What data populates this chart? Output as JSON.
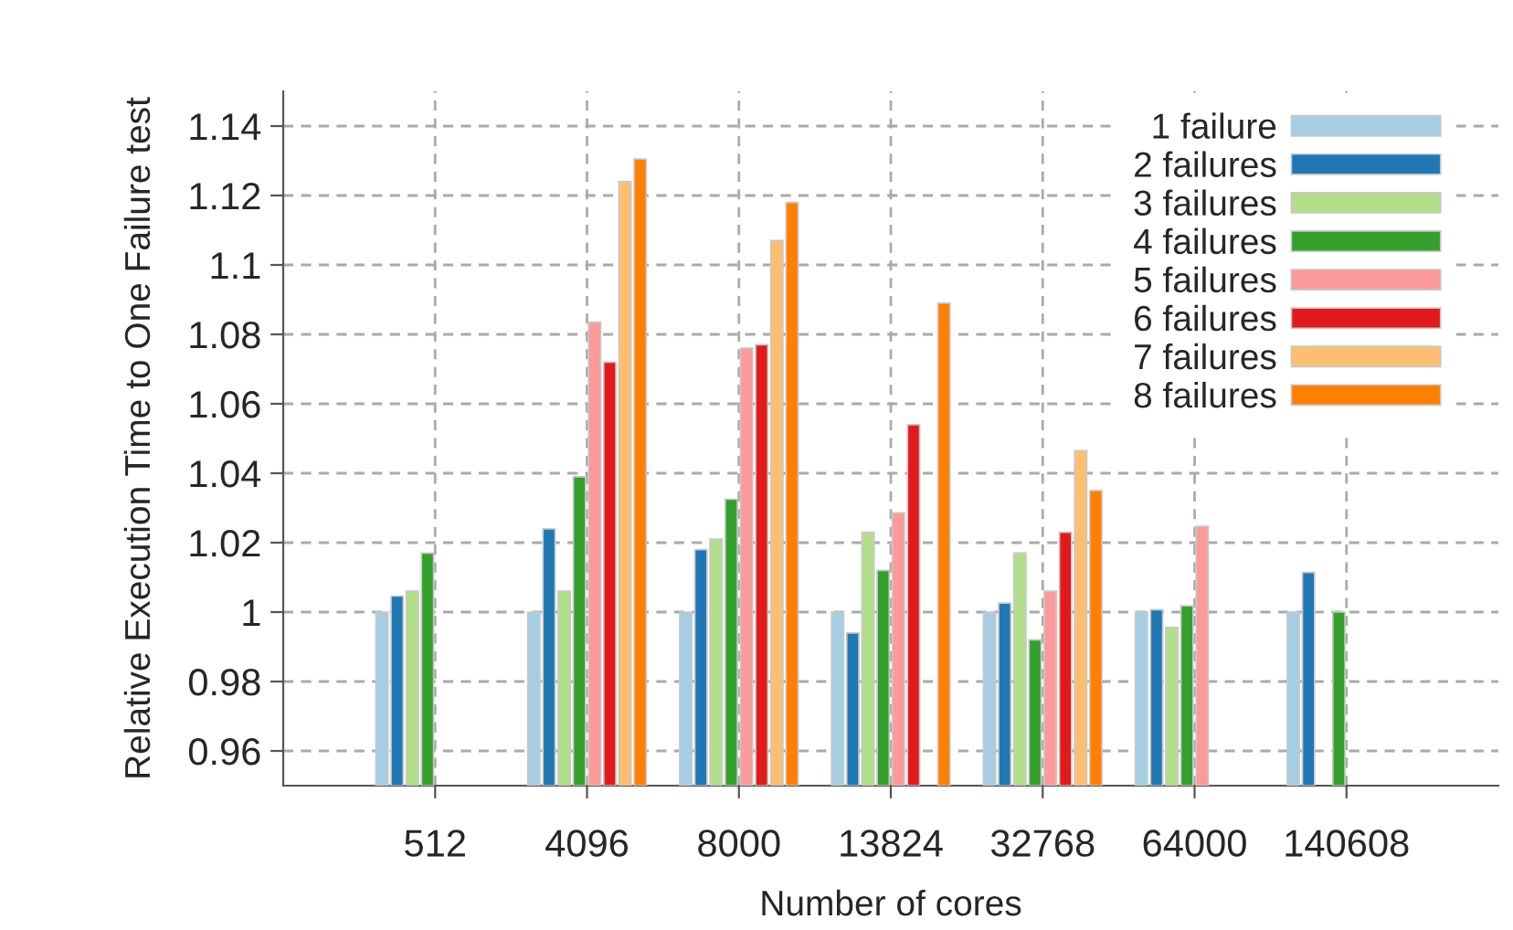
{
  "chart_data": {
    "type": "bar",
    "xlabel": "Number of cores",
    "ylabel": "Relative Execution Time to One Failure test",
    "categories": [
      "512",
      "4096",
      "8000",
      "13824",
      "32768",
      "64000",
      "140608"
    ],
    "series": [
      {
        "name": "1 failure",
        "color": "#a6cee3",
        "values": [
          1,
          1,
          1,
          1,
          1,
          1,
          1
        ]
      },
      {
        "name": "2 failures",
        "color": "#1f78b4",
        "values": [
          1.0046,
          1.024,
          1.018,
          0.994,
          1.0026,
          1.0007,
          1.0114
        ]
      },
      {
        "name": "3 failures",
        "color": "#b2df8a",
        "values": [
          1.006,
          1.006,
          1.021,
          1.023,
          1.017,
          0.9956,
          null
        ]
      },
      {
        "name": "4 failures",
        "color": "#33a02c",
        "values": [
          1.017,
          1.039,
          1.0325,
          1.012,
          0.992,
          1.0018,
          1.0
        ]
      },
      {
        "name": "5 failures",
        "color": "#fb9a99",
        "values": [
          null,
          1.0835,
          1.076,
          1.0286,
          1.006,
          1.0247,
          null
        ]
      },
      {
        "name": "6 failures",
        "color": "#e31a1c",
        "values": [
          null,
          1.072,
          1.077,
          1.054,
          1.023,
          null,
          null
        ]
      },
      {
        "name": "7 failures",
        "color": "#fdbf6f",
        "values": [
          null,
          1.124,
          1.107,
          null,
          1.0465,
          null,
          null
        ]
      },
      {
        "name": "8 failures",
        "color": "#ff7f00",
        "values": [
          null,
          1.1305,
          1.118,
          1.089,
          1.035,
          null,
          null
        ]
      }
    ],
    "ylim": [
      0.95,
      1.15
    ],
    "yticks": [
      0.96,
      0.98,
      1,
      1.02,
      1.04,
      1.06,
      1.08,
      1.1,
      1.12,
      1.14
    ],
    "grid": true,
    "legend": "top right"
  }
}
